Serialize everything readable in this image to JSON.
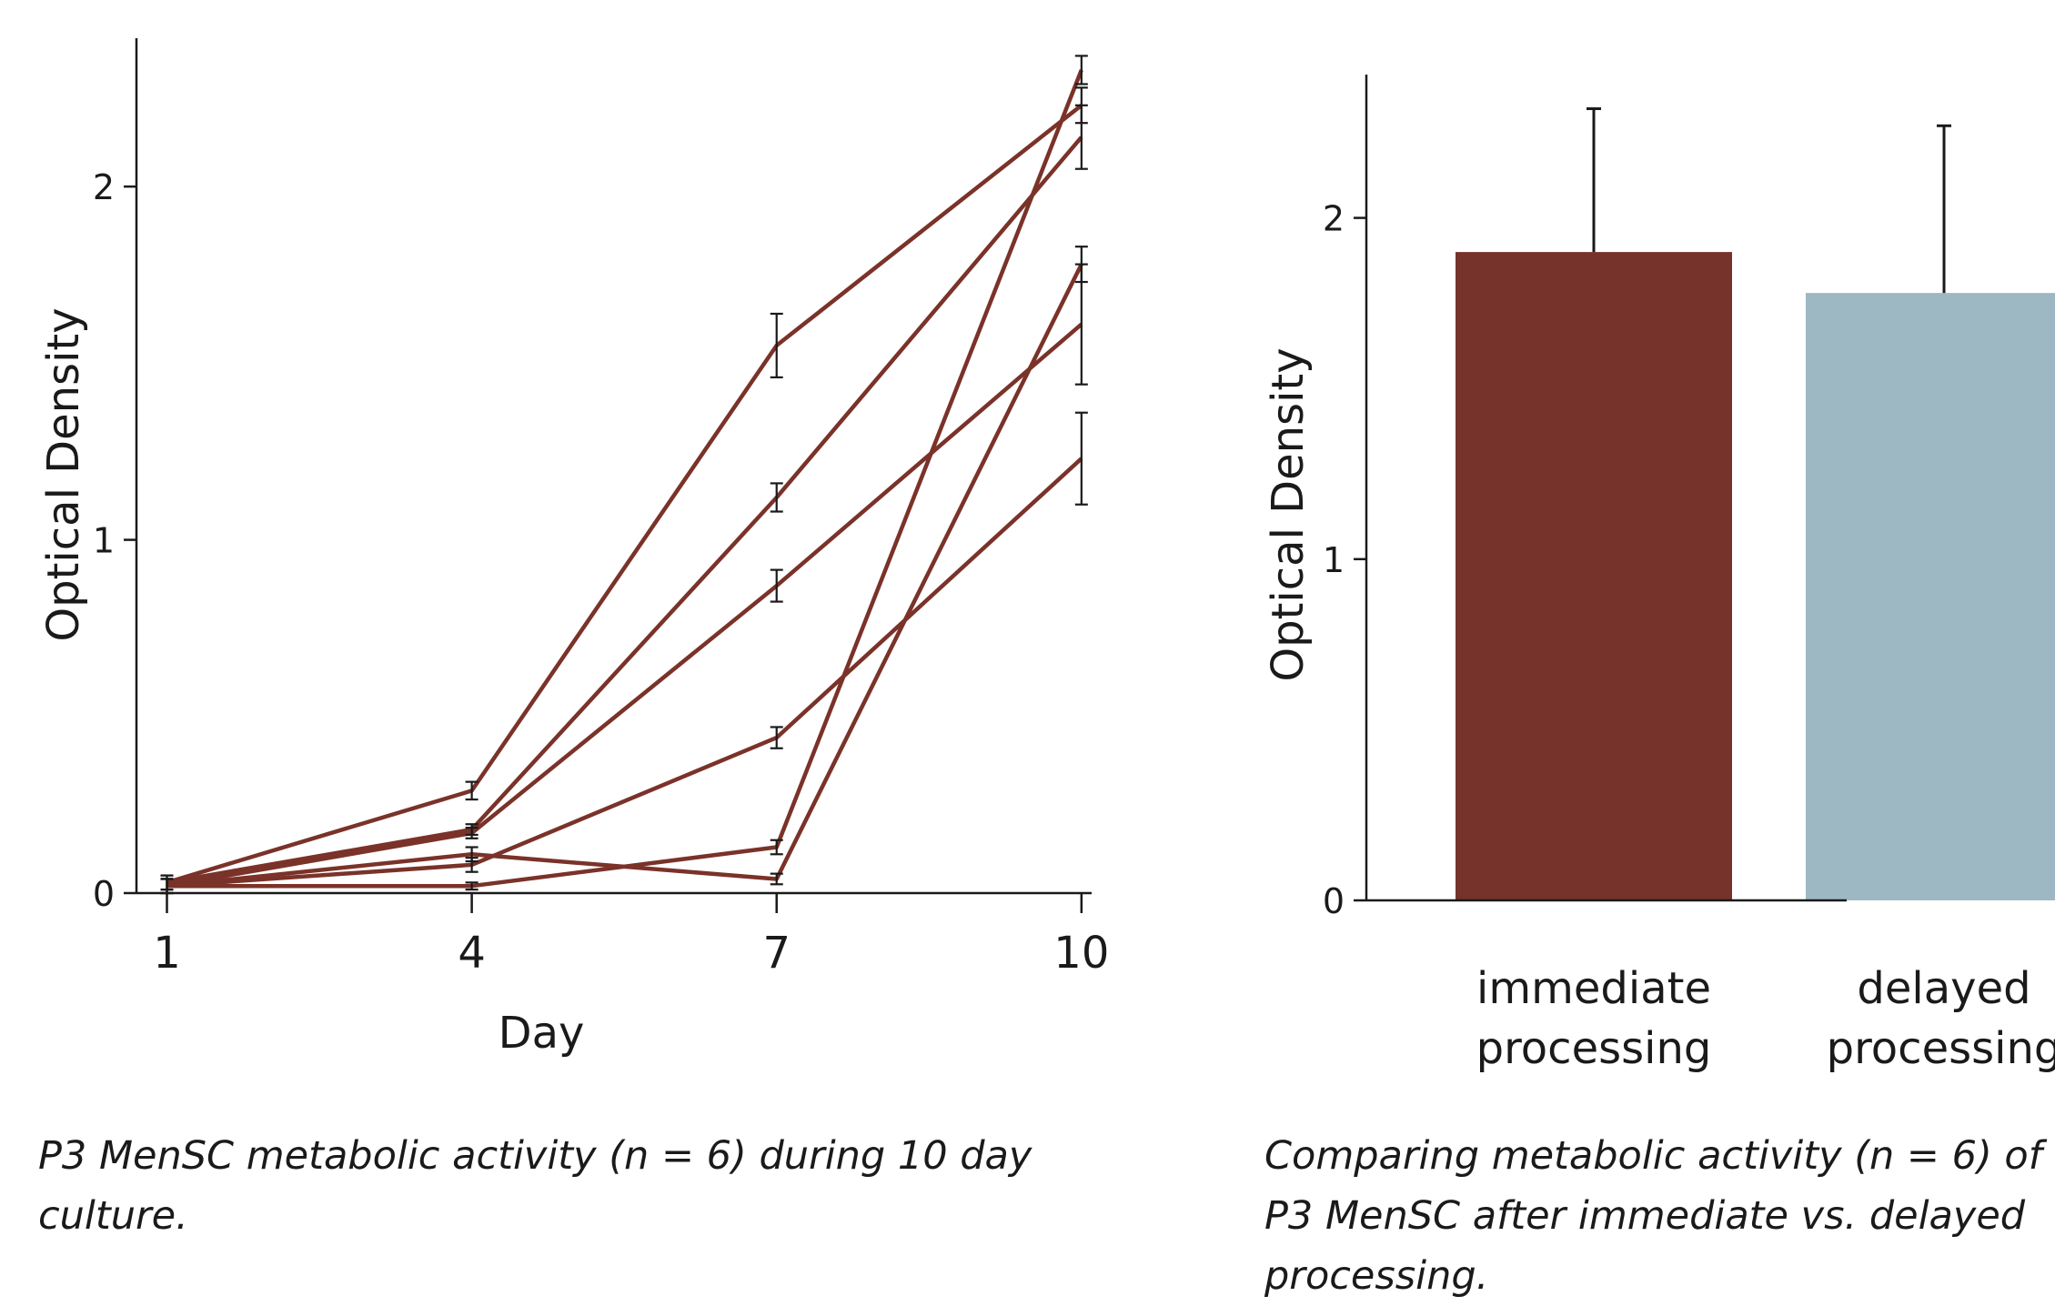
{
  "chart_data": [
    {
      "type": "line",
      "xlabel": "Day",
      "ylabel": "Optical Density",
      "x": [
        1,
        4,
        7,
        10
      ],
      "xticks": [
        "1",
        "4",
        "7",
        "10"
      ],
      "yticks": [
        "0",
        "1",
        "2"
      ],
      "xlim": [
        0.7,
        10.1
      ],
      "ylim": [
        0,
        2.42
      ],
      "line_color": "#7a3229",
      "errorbar_color": "#1a1a1a",
      "series": [
        {
          "values": [
            0.03,
            0.29,
            1.55,
            2.23
          ],
          "errors": [
            0.02,
            0.025,
            0.09,
            0.05
          ]
        },
        {
          "values": [
            0.03,
            0.18,
            1.12,
            2.14
          ],
          "errors": [
            0.02,
            0.015,
            0.04,
            0.09
          ]
        },
        {
          "values": [
            0.02,
            0.17,
            0.87,
            1.61
          ],
          "errors": [
            0.02,
            0.015,
            0.045,
            0.17
          ]
        },
        {
          "values": [
            0.02,
            0.08,
            0.44,
            1.23
          ],
          "errors": [
            0.02,
            0.02,
            0.03,
            0.13
          ]
        },
        {
          "values": [
            0.02,
            0.02,
            0.13,
            2.33
          ],
          "errors": [
            0.02,
            0.01,
            0.02,
            0.04
          ]
        },
        {
          "values": [
            0.02,
            0.11,
            0.04,
            1.78
          ],
          "errors": [
            0.02,
            0.02,
            0.015,
            0.05
          ]
        }
      ]
    },
    {
      "type": "bar",
      "ylabel": "Optical Density",
      "categories": [
        {
          "line1": "immediate",
          "line2": "processing"
        },
        {
          "line1": "delayed",
          "line2": "processing"
        }
      ],
      "values": [
        1.9,
        1.78
      ],
      "errors": [
        0.42,
        0.49
      ],
      "colors": [
        "#76332b",
        "#9db7c3"
      ],
      "yticks": [
        "0",
        "1",
        "2"
      ],
      "ylim": [
        0,
        2.42
      ]
    }
  ],
  "captions": {
    "left": "P3 MenSC metabolic activity (n = 6) during 10 day culture.",
    "right": "Comparing metabolic activity (n = 6) of P3 MenSC after immediate vs. delayed processing."
  }
}
